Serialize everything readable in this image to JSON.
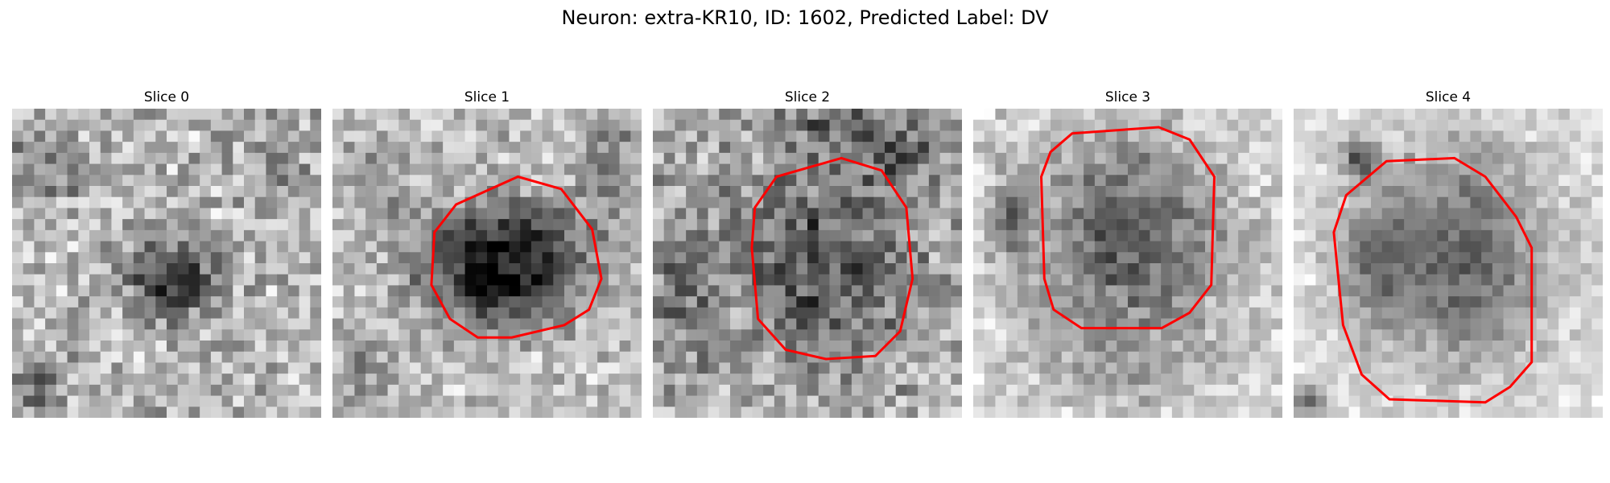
{
  "figure": {
    "title": "Neuron: extra-KR10, ID: 1602, Predicted Label: DV"
  },
  "panels": [
    {
      "title": "Slice 0",
      "has_contour": false
    },
    {
      "title": "Slice 1",
      "has_contour": true
    },
    {
      "title": "Slice 2",
      "has_contour": true
    },
    {
      "title": "Slice 3",
      "has_contour": true
    },
    {
      "title": "Slice 4",
      "has_contour": true
    }
  ],
  "colors": {
    "contour": "#ff0000",
    "background": "#ffffff"
  },
  "colormap": "grayscale"
}
